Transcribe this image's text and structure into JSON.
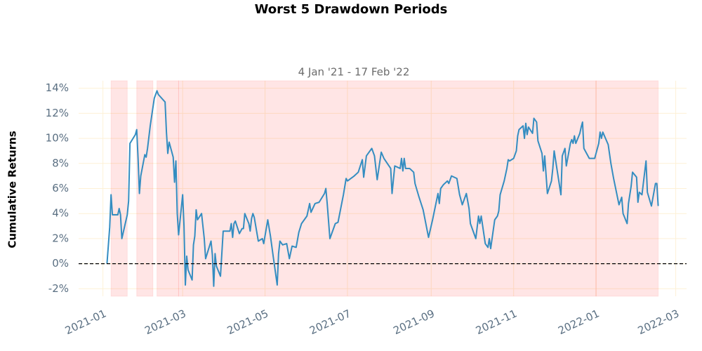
{
  "chart_data": {
    "type": "line",
    "title": "Worst 5 Drawdown Periods",
    "subtitle": "4 Jan '21 - 17 Feb '22",
    "y_label": "Cumulative Returns",
    "color": "#348dc1",
    "shade_color": "#ff0000",
    "grid": true,
    "hline": 0,
    "xlim": [
      "2020-12-14",
      "2022-03-09"
    ],
    "xticks": [
      {
        "value": "2021-01-01",
        "label": "2021-01"
      },
      {
        "value": "2021-03-01",
        "label": "2021-03"
      },
      {
        "value": "2021-05-01",
        "label": "2021-05"
      },
      {
        "value": "2021-07-01",
        "label": "2021-07"
      },
      {
        "value": "2021-09-01",
        "label": "2021-09"
      },
      {
        "value": "2021-11-01",
        "label": "2021-11"
      },
      {
        "value": "2022-01-01",
        "label": "2022-01"
      },
      {
        "value": "2022-03-01",
        "label": "2022-03"
      }
    ],
    "ylim": [
      -2.6,
      14.6
    ],
    "yticks": [
      {
        "value": -2,
        "label": "-2%"
      },
      {
        "value": 0,
        "label": "0%"
      },
      {
        "value": 2,
        "label": "2%"
      },
      {
        "value": 4,
        "label": "4%"
      },
      {
        "value": 6,
        "label": "6%"
      },
      {
        "value": 8,
        "label": "8%"
      },
      {
        "value": 10,
        "label": "10%"
      },
      {
        "value": 12,
        "label": "12%"
      },
      {
        "value": 14,
        "label": "14%"
      }
    ],
    "drawdown_periods": [
      {
        "start": "2021-01-07",
        "end": "2021-01-19"
      },
      {
        "start": "2021-01-26",
        "end": "2021-02-07"
      },
      {
        "start": "2021-02-10",
        "end": "2021-02-26"
      },
      {
        "start": "2021-02-26",
        "end": "2022-01-01"
      },
      {
        "start": "2022-01-01",
        "end": "2022-02-16"
      }
    ],
    "x": [
      "2021-01-04",
      "2021-01-06",
      "2021-01-07",
      "2021-01-08",
      "2021-01-12",
      "2021-01-13",
      "2021-01-14",
      "2021-01-15",
      "2021-01-19",
      "2021-01-20",
      "2021-01-21",
      "2021-01-25",
      "2021-01-26",
      "2021-01-27",
      "2021-01-28",
      "2021-01-29",
      "2021-02-01",
      "2021-02-02",
      "2021-02-03",
      "2021-02-05",
      "2021-02-08",
      "2021-02-10",
      "2021-02-11",
      "2021-02-16",
      "2021-02-17",
      "2021-02-18",
      "2021-02-19",
      "2021-02-22",
      "2021-02-23",
      "2021-02-24",
      "2021-02-25",
      "2021-02-26",
      "2021-03-01",
      "2021-03-02",
      "2021-03-03",
      "2021-03-04",
      "2021-03-05",
      "2021-03-08",
      "2021-03-09",
      "2021-03-10",
      "2021-03-11",
      "2021-03-12",
      "2021-03-15",
      "2021-03-16",
      "2021-03-17",
      "2021-03-18",
      "2021-03-22",
      "2021-03-23",
      "2021-03-24",
      "2021-03-25",
      "2021-03-26",
      "2021-03-29",
      "2021-03-31",
      "2021-04-05",
      "2021-04-06",
      "2021-04-07",
      "2021-04-08",
      "2021-04-09",
      "2021-04-12",
      "2021-04-14",
      "2021-04-15",
      "2021-04-16",
      "2021-04-19",
      "2021-04-20",
      "2021-04-21",
      "2021-04-22",
      "2021-04-23",
      "2021-04-26",
      "2021-04-29",
      "2021-04-30",
      "2021-05-03",
      "2021-05-05",
      "2021-05-07",
      "2021-05-10",
      "2021-05-11",
      "2021-05-12",
      "2021-05-14",
      "2021-05-17",
      "2021-05-19",
      "2021-05-21",
      "2021-05-24",
      "2021-05-26",
      "2021-05-28",
      "2021-06-01",
      "2021-06-03",
      "2021-06-04",
      "2021-06-07",
      "2021-06-10",
      "2021-06-14",
      "2021-06-15",
      "2021-06-16",
      "2021-06-18",
      "2021-06-22",
      "2021-06-24",
      "2021-06-28",
      "2021-06-30",
      "2021-07-01",
      "2021-07-06",
      "2021-07-09",
      "2021-07-12",
      "2021-07-13",
      "2021-07-15",
      "2021-07-19",
      "2021-07-21",
      "2021-07-23",
      "2021-07-26",
      "2021-07-28",
      "2021-08-02",
      "2021-08-03",
      "2021-08-05",
      "2021-08-09",
      "2021-08-10",
      "2021-08-11",
      "2021-08-12",
      "2021-08-13",
      "2021-08-16",
      "2021-08-19",
      "2021-08-20",
      "2021-08-23",
      "2021-08-26",
      "2021-08-30",
      "2021-09-02",
      "2021-09-06",
      "2021-09-07",
      "2021-09-08",
      "2021-09-10",
      "2021-09-13",
      "2021-09-14",
      "2021-09-16",
      "2021-09-20",
      "2021-09-22",
      "2021-09-24",
      "2021-09-27",
      "2021-09-29",
      "2021-09-30",
      "2021-10-04",
      "2021-10-06",
      "2021-10-07",
      "2021-10-08",
      "2021-10-11",
      "2021-10-13",
      "2021-10-14",
      "2021-10-15",
      "2021-10-18",
      "2021-10-20",
      "2021-10-21",
      "2021-10-22",
      "2021-10-25",
      "2021-10-27",
      "2021-10-28",
      "2021-10-29",
      "2021-11-01",
      "2021-11-03",
      "2021-11-04",
      "2021-11-05",
      "2021-11-08",
      "2021-11-09",
      "2021-11-10",
      "2021-11-11",
      "2021-11-12",
      "2021-11-15",
      "2021-11-16",
      "2021-11-18",
      "2021-11-19",
      "2021-11-22",
      "2021-11-23",
      "2021-11-24",
      "2021-11-26",
      "2021-11-29",
      "2021-11-30",
      "2021-12-01",
      "2021-12-02",
      "2021-12-03",
      "2021-12-06",
      "2021-12-07",
      "2021-12-09",
      "2021-12-10",
      "2021-12-13",
      "2021-12-14",
      "2021-12-15",
      "2021-12-16",
      "2021-12-17",
      "2021-12-20",
      "2021-12-21",
      "2021-12-22",
      "2021-12-23",
      "2021-12-27",
      "2021-12-31",
      "2022-01-03",
      "2022-01-04",
      "2022-01-05",
      "2022-01-06",
      "2022-01-10",
      "2022-01-12",
      "2022-01-14",
      "2022-01-18",
      "2022-01-20",
      "2022-01-21",
      "2022-01-24",
      "2022-01-25",
      "2022-01-27",
      "2022-01-28",
      "2022-01-31",
      "2022-02-01",
      "2022-02-02",
      "2022-02-04",
      "2022-02-07",
      "2022-02-08",
      "2022-02-11",
      "2022-02-14",
      "2022-02-15",
      "2022-02-16"
    ],
    "values": [
      0,
      2.9,
      5.5,
      3.9,
      3.9,
      4.4,
      3.9,
      2.0,
      3.9,
      5.0,
      9.6,
      10.3,
      10.7,
      8.4,
      5.6,
      7.0,
      8.7,
      8.5,
      9.2,
      11.0,
      13.2,
      13.8,
      13.5,
      12.9,
      10.5,
      8.8,
      9.7,
      8.5,
      6.5,
      8.2,
      4.0,
      2.3,
      5.5,
      3.0,
      -1.7,
      0.6,
      -0.5,
      -1.3,
      1.5,
      2.2,
      4.3,
      3.5,
      4.0,
      3.0,
      2.0,
      0.4,
      1.8,
      0.7,
      -1.8,
      0.8,
      -0.2,
      -1.0,
      2.6,
      2.6,
      3.2,
      2.1,
      3.2,
      3.4,
      2.4,
      2.8,
      2.8,
      4.0,
      3.2,
      2.6,
      3.6,
      4.0,
      3.7,
      1.8,
      2.0,
      1.6,
      3.5,
      2.2,
      0.6,
      -1.7,
      0.8,
      1.8,
      1.5,
      1.6,
      0.4,
      1.4,
      1.3,
      2.5,
      3.2,
      3.8,
      4.8,
      4.1,
      4.8,
      4.9,
      5.6,
      6.0,
      4.8,
      2.0,
      3.2,
      3.3,
      5.5,
      6.8,
      6.6,
      7.0,
      7.3,
      8.3,
      6.9,
      8.6,
      9.2,
      8.6,
      6.7,
      8.9,
      8.4,
      7.6,
      5.6,
      7.8,
      7.6,
      8.4,
      7.4,
      8.4,
      7.6,
      7.6,
      7.3,
      6.4,
      5.3,
      4.3,
      2.1,
      3.5,
      5.6,
      4.8,
      6.0,
      6.3,
      6.6,
      6.4,
      7.0,
      6.8,
      5.5,
      4.7,
      5.6,
      4.4,
      3.2,
      2.0,
      3.8,
      3.2,
      3.8,
      1.6,
      1.3,
      2.0,
      1.2,
      3.5,
      3.8,
      4.2,
      5.5,
      6.6,
      7.6,
      8.3,
      8.2,
      8.4,
      9.0,
      10.2,
      10.7,
      11.0,
      10.0,
      11.2,
      10.3,
      10.9,
      10.4,
      11.6,
      11.3,
      9.8,
      8.8,
      7.4,
      8.6,
      5.6,
      6.6,
      7.6,
      9.0,
      8.3,
      7.6,
      5.5,
      8.6,
      9.2,
      7.8,
      9.6,
      9.9,
      9.6,
      10.2,
      9.6,
      10.4,
      10.9,
      11.3,
      9.2,
      8.4,
      8.4,
      9.6,
      10.5,
      10.0,
      10.5,
      9.5,
      8.0,
      6.8,
      4.7,
      5.3,
      4.0,
      3.2,
      4.8,
      6.2,
      7.3,
      6.9,
      4.9,
      5.7,
      5.5,
      8.2,
      5.7,
      4.6,
      6.4,
      6.4,
      4.6
    ]
  }
}
